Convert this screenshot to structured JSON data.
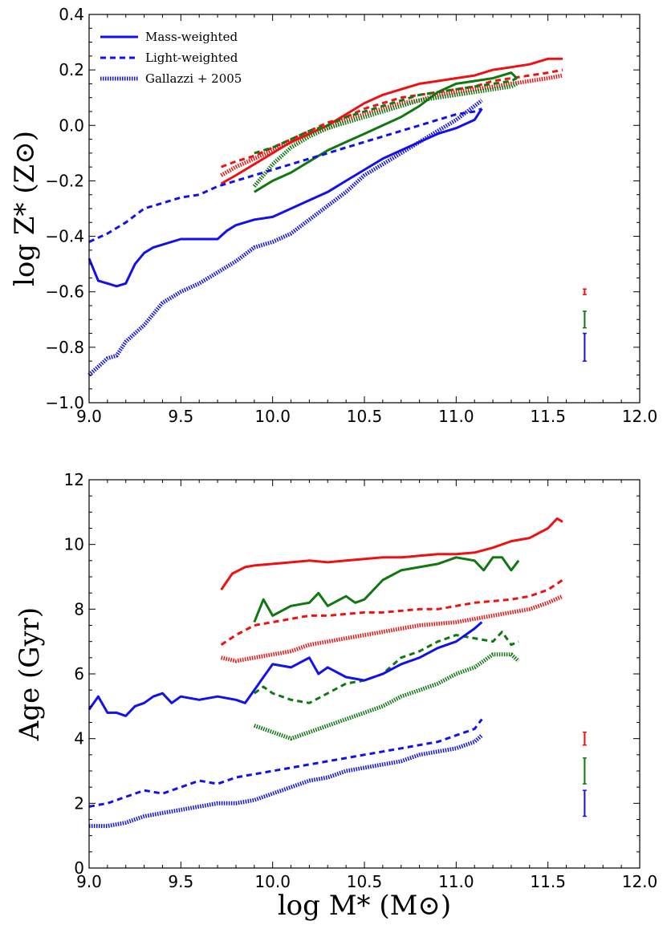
{
  "colors": {
    "red": "#ee1111",
    "green": "#117711",
    "blue": "#1111ee"
  },
  "legend": [
    {
      "label": "Mass-weighted",
      "style": "solid"
    },
    {
      "label": "Light-weighted",
      "style": "dashed"
    },
    {
      "label": "Gallazzi + 2005",
      "style": "dotted"
    }
  ],
  "chart_data": [
    {
      "type": "line",
      "id": "metallicity",
      "ylabel": "log Z* (Z⊙)",
      "xlabel": "",
      "xlim": [
        9.0,
        12.0
      ],
      "ylim": [
        -1.0,
        0.4
      ],
      "xticks": [
        "9.0",
        "9.5",
        "10.0",
        "10.5",
        "11.0",
        "11.5",
        "12.0"
      ],
      "yticks": [
        "−1.0",
        "−0.8",
        "−0.6",
        "−0.4",
        "−0.2",
        "0.0",
        "0.2",
        "0.4"
      ],
      "ytick_values": [
        -1.0,
        -0.8,
        -0.6,
        -0.4,
        -0.2,
        0.0,
        0.2,
        0.4
      ],
      "series": [
        {
          "name": "red mass-weighted",
          "color": "red",
          "style": "solid",
          "x": [
            9.72,
            9.8,
            9.9,
            10.0,
            10.1,
            10.2,
            10.3,
            10.4,
            10.5,
            10.6,
            10.7,
            10.8,
            10.9,
            11.0,
            11.1,
            11.2,
            11.3,
            11.4,
            11.5,
            11.58
          ],
          "y": [
            -0.21,
            -0.18,
            -0.14,
            -0.1,
            -0.06,
            -0.03,
            0.0,
            0.04,
            0.08,
            0.11,
            0.13,
            0.15,
            0.16,
            0.17,
            0.18,
            0.2,
            0.21,
            0.22,
            0.24,
            0.24
          ]
        },
        {
          "name": "red light-weighted",
          "color": "red",
          "style": "dashed",
          "x": [
            9.72,
            9.8,
            9.9,
            10.0,
            10.1,
            10.2,
            10.3,
            10.4,
            10.5,
            10.6,
            10.7,
            10.8,
            10.9,
            11.0,
            11.1,
            11.2,
            11.3,
            11.4,
            11.5,
            11.58
          ],
          "y": [
            -0.15,
            -0.13,
            -0.11,
            -0.08,
            -0.05,
            -0.02,
            0.01,
            0.03,
            0.06,
            0.08,
            0.1,
            0.11,
            0.12,
            0.13,
            0.14,
            0.16,
            0.17,
            0.18,
            0.19,
            0.2
          ]
        },
        {
          "name": "red gallazzi",
          "color": "red",
          "style": "dotted",
          "x": [
            9.72,
            9.8,
            9.9,
            10.0,
            10.1,
            10.2,
            10.3,
            10.4,
            10.5,
            10.6,
            10.7,
            10.8,
            10.9,
            11.0,
            11.1,
            11.2,
            11.3,
            11.4,
            11.5,
            11.58
          ],
          "y": [
            -0.18,
            -0.15,
            -0.12,
            -0.09,
            -0.06,
            -0.03,
            -0.01,
            0.02,
            0.04,
            0.06,
            0.08,
            0.09,
            0.11,
            0.12,
            0.13,
            0.14,
            0.15,
            0.16,
            0.17,
            0.18
          ]
        },
        {
          "name": "green mass-weighted",
          "color": "green",
          "style": "solid",
          "x": [
            9.9,
            9.95,
            10.0,
            10.1,
            10.2,
            10.3,
            10.4,
            10.5,
            10.6,
            10.7,
            10.8,
            10.9,
            11.0,
            11.1,
            11.2,
            11.3,
            11.33
          ],
          "y": [
            -0.24,
            -0.22,
            -0.2,
            -0.17,
            -0.13,
            -0.09,
            -0.06,
            -0.03,
            0.0,
            0.03,
            0.07,
            0.12,
            0.15,
            0.16,
            0.17,
            0.19,
            0.17
          ]
        },
        {
          "name": "green light-weighted",
          "color": "green",
          "style": "dashed",
          "x": [
            9.9,
            10.0,
            10.1,
            10.2,
            10.3,
            10.4,
            10.5,
            10.6,
            10.7,
            10.8,
            10.9,
            11.0,
            11.1,
            11.2,
            11.3,
            11.33
          ],
          "y": [
            -0.1,
            -0.08,
            -0.05,
            -0.02,
            0.0,
            0.03,
            0.05,
            0.07,
            0.09,
            0.11,
            0.12,
            0.13,
            0.14,
            0.15,
            0.16,
            0.17
          ]
        },
        {
          "name": "green gallazzi",
          "color": "green",
          "style": "dotted",
          "x": [
            9.9,
            10.0,
            10.1,
            10.2,
            10.3,
            10.4,
            10.5,
            10.6,
            10.7,
            10.8,
            10.9,
            11.0,
            11.1,
            11.2,
            11.3,
            11.33
          ],
          "y": [
            -0.22,
            -0.14,
            -0.08,
            -0.04,
            -0.01,
            0.01,
            0.03,
            0.05,
            0.07,
            0.09,
            0.1,
            0.11,
            0.12,
            0.13,
            0.14,
            0.15
          ]
        },
        {
          "name": "blue mass-weighted",
          "color": "blue",
          "style": "solid",
          "x": [
            9.0,
            9.05,
            9.1,
            9.15,
            9.2,
            9.25,
            9.3,
            9.35,
            9.4,
            9.5,
            9.6,
            9.7,
            9.75,
            9.8,
            9.9,
            10.0,
            10.1,
            10.2,
            10.3,
            10.4,
            10.5,
            10.6,
            10.7,
            10.8,
            10.9,
            11.0,
            11.1,
            11.14
          ],
          "y": [
            -0.48,
            -0.56,
            -0.57,
            -0.58,
            -0.57,
            -0.5,
            -0.46,
            -0.44,
            -0.43,
            -0.41,
            -0.41,
            -0.41,
            -0.38,
            -0.36,
            -0.34,
            -0.33,
            -0.3,
            -0.27,
            -0.24,
            -0.2,
            -0.16,
            -0.12,
            -0.09,
            -0.06,
            -0.03,
            -0.01,
            0.02,
            0.06
          ]
        },
        {
          "name": "blue light-weighted",
          "color": "blue",
          "style": "dashed",
          "x": [
            9.0,
            9.1,
            9.2,
            9.3,
            9.4,
            9.5,
            9.6,
            9.7,
            9.8,
            9.9,
            10.0,
            10.1,
            10.2,
            10.3,
            10.4,
            10.5,
            10.6,
            10.7,
            10.8,
            10.9,
            11.0,
            11.1,
            11.14
          ],
          "y": [
            -0.42,
            -0.39,
            -0.35,
            -0.3,
            -0.28,
            -0.26,
            -0.25,
            -0.22,
            -0.2,
            -0.18,
            -0.16,
            -0.14,
            -0.12,
            -0.1,
            -0.08,
            -0.06,
            -0.04,
            -0.02,
            0.0,
            0.02,
            0.04,
            0.05,
            0.06
          ]
        },
        {
          "name": "blue gallazzi",
          "color": "blue",
          "style": "dotted",
          "x": [
            9.0,
            9.05,
            9.1,
            9.15,
            9.2,
            9.3,
            9.4,
            9.5,
            9.6,
            9.7,
            9.8,
            9.9,
            10.0,
            10.1,
            10.2,
            10.3,
            10.4,
            10.5,
            10.6,
            10.7,
            10.8,
            10.9,
            11.0,
            11.1,
            11.14
          ],
          "y": [
            -0.9,
            -0.87,
            -0.84,
            -0.83,
            -0.78,
            -0.72,
            -0.64,
            -0.6,
            -0.57,
            -0.53,
            -0.49,
            -0.44,
            -0.42,
            -0.39,
            -0.34,
            -0.29,
            -0.24,
            -0.18,
            -0.14,
            -0.1,
            -0.06,
            -0.02,
            0.02,
            0.07,
            0.09
          ]
        }
      ],
      "error_bars": [
        {
          "color": "red",
          "x": 11.7,
          "y": -0.6,
          "yerr": 0.01
        },
        {
          "color": "green",
          "x": 11.7,
          "y": -0.7,
          "yerr": 0.03
        },
        {
          "color": "blue",
          "x": 11.7,
          "y": -0.8,
          "yerr": 0.05
        }
      ]
    },
    {
      "type": "line",
      "id": "age",
      "ylabel": "Age (Gyr)",
      "xlabel": "log M* (M⊙)",
      "xlim": [
        9.0,
        12.0
      ],
      "ylim": [
        0,
        12
      ],
      "xticks": [
        "9.0",
        "9.5",
        "10.0",
        "10.5",
        "11.0",
        "11.5",
        "12.0"
      ],
      "yticks": [
        "0",
        "2",
        "4",
        "6",
        "8",
        "10",
        "12"
      ],
      "ytick_values": [
        0,
        2,
        4,
        6,
        8,
        10,
        12
      ],
      "series": [
        {
          "name": "red mass-weighted",
          "color": "red",
          "style": "solid",
          "x": [
            9.72,
            9.78,
            9.85,
            9.9,
            10.0,
            10.1,
            10.2,
            10.3,
            10.4,
            10.5,
            10.6,
            10.7,
            10.8,
            10.9,
            11.0,
            11.1,
            11.2,
            11.3,
            11.4,
            11.5,
            11.55,
            11.58
          ],
          "y": [
            8.6,
            9.1,
            9.3,
            9.35,
            9.4,
            9.45,
            9.5,
            9.45,
            9.5,
            9.55,
            9.6,
            9.6,
            9.65,
            9.7,
            9.7,
            9.75,
            9.9,
            10.1,
            10.2,
            10.5,
            10.8,
            10.7
          ]
        },
        {
          "name": "red light-weighted",
          "color": "red",
          "style": "dashed",
          "x": [
            9.72,
            9.8,
            9.9,
            10.0,
            10.1,
            10.2,
            10.3,
            10.4,
            10.5,
            10.6,
            10.7,
            10.8,
            10.9,
            11.0,
            11.1,
            11.2,
            11.3,
            11.4,
            11.5,
            11.58
          ],
          "y": [
            6.9,
            7.2,
            7.5,
            7.6,
            7.7,
            7.8,
            7.8,
            7.85,
            7.9,
            7.9,
            7.95,
            8.0,
            8.0,
            8.1,
            8.2,
            8.25,
            8.3,
            8.4,
            8.6,
            8.9
          ]
        },
        {
          "name": "red gallazzi",
          "color": "red",
          "style": "dotted",
          "x": [
            9.72,
            9.8,
            9.9,
            10.0,
            10.1,
            10.2,
            10.3,
            10.4,
            10.5,
            10.6,
            10.7,
            10.8,
            10.9,
            11.0,
            11.1,
            11.2,
            11.3,
            11.4,
            11.5,
            11.58
          ],
          "y": [
            6.5,
            6.4,
            6.5,
            6.6,
            6.7,
            6.9,
            7.0,
            7.1,
            7.2,
            7.3,
            7.4,
            7.5,
            7.55,
            7.6,
            7.7,
            7.8,
            7.9,
            8.0,
            8.2,
            8.4
          ]
        },
        {
          "name": "green mass-weighted",
          "color": "green",
          "style": "solid",
          "x": [
            9.9,
            9.95,
            10.0,
            10.1,
            10.2,
            10.25,
            10.3,
            10.4,
            10.45,
            10.5,
            10.6,
            10.7,
            10.8,
            10.9,
            11.0,
            11.1,
            11.15,
            11.2,
            11.25,
            11.3,
            11.34
          ],
          "y": [
            7.6,
            8.3,
            7.8,
            8.1,
            8.2,
            8.5,
            8.1,
            8.4,
            8.2,
            8.3,
            8.9,
            9.2,
            9.3,
            9.4,
            9.6,
            9.5,
            9.2,
            9.6,
            9.6,
            9.2,
            9.5
          ]
        },
        {
          "name": "green light-weighted",
          "color": "green",
          "style": "dashed",
          "x": [
            9.9,
            9.95,
            10.0,
            10.1,
            10.2,
            10.3,
            10.4,
            10.5,
            10.6,
            10.7,
            10.8,
            10.9,
            11.0,
            11.1,
            11.2,
            11.25,
            11.3,
            11.34
          ],
          "y": [
            5.4,
            5.6,
            5.4,
            5.2,
            5.1,
            5.4,
            5.7,
            5.8,
            6.0,
            6.5,
            6.7,
            7.0,
            7.2,
            7.1,
            7.0,
            7.3,
            6.9,
            7.0
          ]
        },
        {
          "name": "green gallazzi",
          "color": "green",
          "style": "dotted",
          "x": [
            9.9,
            10.0,
            10.1,
            10.2,
            10.3,
            10.4,
            10.5,
            10.6,
            10.7,
            10.8,
            10.9,
            11.0,
            11.1,
            11.2,
            11.3,
            11.34
          ],
          "y": [
            4.4,
            4.2,
            4.0,
            4.2,
            4.4,
            4.6,
            4.8,
            5.0,
            5.3,
            5.5,
            5.7,
            6.0,
            6.2,
            6.6,
            6.6,
            6.4
          ]
        },
        {
          "name": "blue mass-weighted",
          "color": "blue",
          "style": "solid",
          "x": [
            9.0,
            9.05,
            9.1,
            9.15,
            9.2,
            9.25,
            9.3,
            9.35,
            9.4,
            9.45,
            9.5,
            9.6,
            9.7,
            9.8,
            9.85,
            9.9,
            9.95,
            10.0,
            10.1,
            10.2,
            10.25,
            10.3,
            10.4,
            10.5,
            10.6,
            10.7,
            10.8,
            10.9,
            11.0,
            11.1,
            11.14
          ],
          "y": [
            4.9,
            5.3,
            4.8,
            4.8,
            4.7,
            5.0,
            5.1,
            5.3,
            5.4,
            5.1,
            5.3,
            5.2,
            5.3,
            5.2,
            5.1,
            5.5,
            5.9,
            6.3,
            6.2,
            6.5,
            6.0,
            6.2,
            5.9,
            5.8,
            6.0,
            6.3,
            6.5,
            6.8,
            7.0,
            7.4,
            7.6
          ]
        },
        {
          "name": "blue light-weighted",
          "color": "blue",
          "style": "dashed",
          "x": [
            9.0,
            9.1,
            9.2,
            9.3,
            9.4,
            9.5,
            9.6,
            9.7,
            9.8,
            9.9,
            10.0,
            10.1,
            10.2,
            10.3,
            10.4,
            10.5,
            10.6,
            10.7,
            10.8,
            10.9,
            11.0,
            11.1,
            11.14
          ],
          "y": [
            1.9,
            2.0,
            2.2,
            2.4,
            2.3,
            2.5,
            2.7,
            2.6,
            2.8,
            2.9,
            3.0,
            3.1,
            3.2,
            3.3,
            3.4,
            3.5,
            3.6,
            3.7,
            3.8,
            3.9,
            4.1,
            4.3,
            4.6
          ]
        },
        {
          "name": "blue gallazzi",
          "color": "blue",
          "style": "dotted",
          "x": [
            9.0,
            9.1,
            9.2,
            9.3,
            9.4,
            9.5,
            9.6,
            9.7,
            9.8,
            9.9,
            10.0,
            10.1,
            10.2,
            10.3,
            10.4,
            10.5,
            10.6,
            10.7,
            10.8,
            10.9,
            11.0,
            11.1,
            11.14
          ],
          "y": [
            1.3,
            1.3,
            1.4,
            1.6,
            1.7,
            1.8,
            1.9,
            2.0,
            2.0,
            2.1,
            2.3,
            2.5,
            2.7,
            2.8,
            3.0,
            3.1,
            3.2,
            3.3,
            3.5,
            3.6,
            3.7,
            3.9,
            4.1
          ]
        }
      ],
      "error_bars": [
        {
          "color": "red",
          "x": 11.7,
          "y": 4.0,
          "yerr": 0.2
        },
        {
          "color": "green",
          "x": 11.7,
          "y": 3.0,
          "yerr": 0.4
        },
        {
          "color": "blue",
          "x": 11.7,
          "y": 2.0,
          "yerr": 0.4
        }
      ]
    }
  ]
}
